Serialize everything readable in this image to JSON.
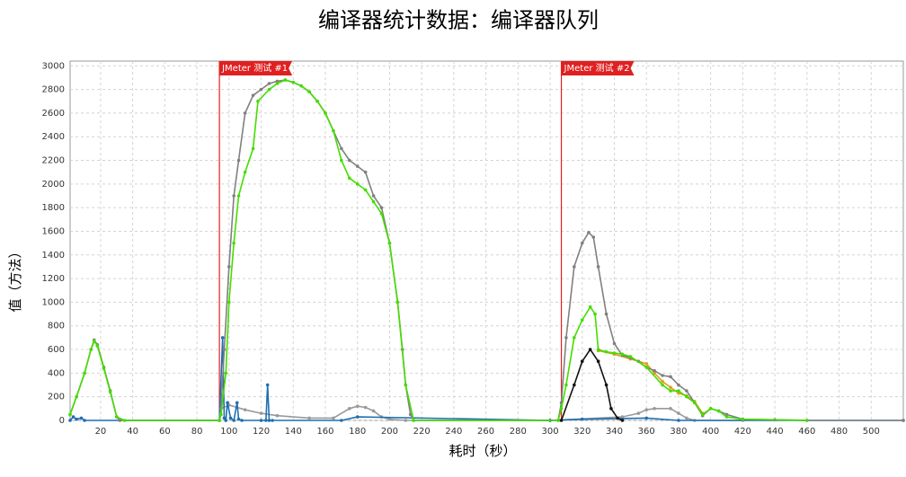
{
  "chart_data": {
    "type": "line",
    "title": "编译器统计数据：编译器队列",
    "x_label": "耗时（秒）",
    "y_label": "值（方法）",
    "xlim": [
      1,
      520
    ],
    "ylim": [
      0,
      3040
    ],
    "xticks": [
      20,
      40,
      60,
      80,
      100,
      120,
      140,
      160,
      180,
      200,
      220,
      240,
      260,
      280,
      300,
      320,
      340,
      360,
      380,
      400,
      420,
      440,
      460,
      480,
      500
    ],
    "yticks": [
      0,
      200,
      400,
      600,
      800,
      1000,
      1200,
      1400,
      1600,
      1800,
      2000,
      2200,
      2400,
      2600,
      2800,
      3000
    ],
    "grid": true,
    "markers": true,
    "annotations": [
      {
        "x": 94,
        "label": "JMeter 测试 #1",
        "color": "#e02020"
      },
      {
        "x": 307,
        "label": "JMeter 测试 #2",
        "color": "#e02020"
      }
    ],
    "series": [
      {
        "color": "#999999",
        "x": [
          95,
          100,
          110,
          120,
          130,
          150,
          165,
          175,
          180,
          185,
          190,
          195,
          200,
          210,
          300,
          345,
          355,
          360,
          365,
          375,
          380,
          385,
          390,
          420
        ],
        "values": [
          100,
          130,
          90,
          60,
          40,
          20,
          20,
          100,
          120,
          110,
          80,
          30,
          10,
          0,
          0,
          30,
          60,
          90,
          100,
          100,
          60,
          20,
          0,
          0
        ]
      },
      {
        "color": "#1f6fb0",
        "x": [
          1,
          3,
          5,
          8,
          10,
          94,
          96,
          97,
          98,
          99,
          101,
          103,
          105,
          106,
          108,
          120,
          123,
          124,
          125,
          127,
          170,
          180,
          300,
          320,
          360,
          380,
          520
        ],
        "values": [
          0,
          30,
          10,
          20,
          0,
          0,
          700,
          20,
          0,
          150,
          20,
          0,
          150,
          10,
          0,
          0,
          0,
          300,
          0,
          0,
          0,
          30,
          0,
          10,
          20,
          0,
          0
        ]
      },
      {
        "color": "#e0a020",
        "x": [
          330,
          340,
          350,
          360,
          365,
          370,
          375,
          380,
          385,
          390,
          395
        ],
        "values": [
          590,
          560,
          520,
          480,
          400,
          330,
          280,
          230,
          210,
          160,
          60
        ]
      },
      {
        "color": "#808080",
        "x": [
          1,
          5,
          10,
          14,
          16,
          18,
          22,
          26,
          30,
          32,
          94,
          95,
          97,
          100,
          103,
          106,
          110,
          115,
          120,
          125,
          130,
          135,
          140,
          145,
          150,
          155,
          160,
          165,
          170,
          175,
          180,
          185,
          190,
          195,
          200,
          205,
          208,
          210,
          213,
          215,
          305,
          307,
          310,
          315,
          320,
          324,
          327,
          330,
          335,
          340,
          345,
          350,
          355,
          360,
          365,
          370,
          375,
          380,
          385,
          390,
          395,
          400,
          405,
          410,
          420,
          440,
          460,
          520
        ],
        "values": [
          50,
          200,
          400,
          600,
          680,
          640,
          450,
          250,
          30,
          0,
          0,
          100,
          600,
          1300,
          1900,
          2200,
          2600,
          2750,
          2800,
          2850,
          2870,
          2880,
          2860,
          2830,
          2780,
          2700,
          2600,
          2450,
          2300,
          2200,
          2150,
          2100,
          1900,
          1800,
          1500,
          1000,
          600,
          300,
          50,
          0,
          0,
          150,
          700,
          1300,
          1500,
          1590,
          1550,
          1300,
          900,
          650,
          550,
          530,
          500,
          450,
          420,
          380,
          370,
          300,
          250,
          150,
          40,
          100,
          80,
          50,
          10,
          5,
          0,
          0
        ]
      },
      {
        "color": "#44dd00",
        "x": [
          1,
          5,
          10,
          14,
          16,
          18,
          22,
          26,
          30,
          35,
          94,
          95,
          98,
          100,
          103,
          106,
          110,
          115,
          118,
          125,
          130,
          135,
          140,
          145,
          150,
          155,
          160,
          165,
          170,
          175,
          180,
          185,
          190,
          195,
          200,
          205,
          210,
          215,
          305,
          307,
          310,
          315,
          320,
          325,
          328,
          330,
          335,
          340,
          345,
          350,
          360,
          370,
          375,
          380,
          385,
          390,
          395,
          400,
          405,
          410,
          420,
          460
        ],
        "values": [
          50,
          200,
          400,
          600,
          670,
          630,
          440,
          240,
          30,
          0,
          0,
          50,
          400,
          1000,
          1500,
          1900,
          2100,
          2300,
          2700,
          2800,
          2850,
          2880,
          2860,
          2830,
          2780,
          2700,
          2600,
          2450,
          2200,
          2050,
          2000,
          1950,
          1850,
          1750,
          1500,
          1000,
          300,
          0,
          0,
          100,
          300,
          700,
          850,
          960,
          900,
          600,
          580,
          570,
          560,
          540,
          450,
          300,
          250,
          250,
          200,
          150,
          50,
          100,
          80,
          30,
          10,
          0
        ]
      },
      {
        "color": "#111111",
        "x": [
          307,
          315,
          320,
          325,
          330,
          335,
          338,
          342,
          345
        ],
        "values": [
          0,
          300,
          500,
          600,
          500,
          300,
          100,
          20,
          0
        ]
      }
    ]
  }
}
